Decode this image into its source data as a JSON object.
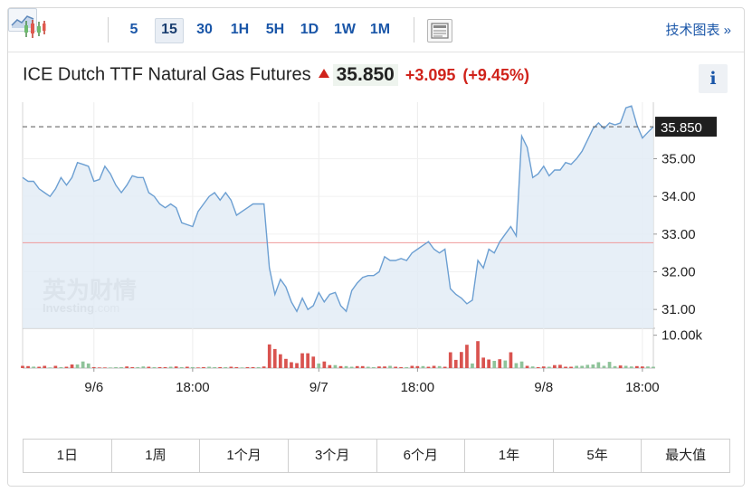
{
  "toolbar": {
    "timeframes": [
      "5",
      "15",
      "30",
      "1H",
      "5H",
      "1D",
      "1W",
      "1M"
    ],
    "active_timeframe": "15",
    "tech_chart_link": "技术图表 »"
  },
  "instrument": {
    "name": "ICE Dutch TTF Natural Gas Futures",
    "price": "35.850",
    "change": "+3.095",
    "change_pct": "(+9.45%)",
    "info_label": "i",
    "up_color": "#d0231b"
  },
  "watermark": {
    "brand_cn": "英为财情",
    "brand_en": "Investing",
    "brand_suffix": ".com"
  },
  "chart_data": {
    "type": "area",
    "x_ticks": [
      "9/6",
      "18:00",
      "9/7",
      "18:00",
      "9/8",
      "18:00"
    ],
    "x_tick_index": [
      13,
      31,
      54,
      72,
      95,
      113
    ],
    "ylim": [
      30.5,
      36.5
    ],
    "y_ticks": [
      "35.00",
      "34.00",
      "33.00",
      "32.00",
      "31.00"
    ],
    "y_tick_values": [
      35,
      34,
      33,
      32,
      31
    ],
    "last_price_label": "35.850",
    "last_price": 35.85,
    "reference_line": 32.77,
    "volume_axis_label": "10.00k",
    "volume_max": 11000,
    "line_color": "#6c9fd2",
    "fill_color": "#e3ecf6",
    "up_volume_color": "#d9534f",
    "down_volume_color": "#8fc39a",
    "prices": [
      34.5,
      34.4,
      34.4,
      34.2,
      34.1,
      34.0,
      34.2,
      34.5,
      34.3,
      34.5,
      34.9,
      34.85,
      34.8,
      34.4,
      34.45,
      34.8,
      34.6,
      34.3,
      34.1,
      34.3,
      34.55,
      34.5,
      34.5,
      34.1,
      34.0,
      33.8,
      33.7,
      33.8,
      33.7,
      33.3,
      33.25,
      33.2,
      33.6,
      33.8,
      34.0,
      34.1,
      33.9,
      34.1,
      33.9,
      33.5,
      33.6,
      33.7,
      33.8,
      33.8,
      33.8,
      32.1,
      31.4,
      31.8,
      31.6,
      31.2,
      30.95,
      31.3,
      31.0,
      31.1,
      31.45,
      31.2,
      31.4,
      31.45,
      31.1,
      30.95,
      31.5,
      31.7,
      31.85,
      31.9,
      31.9,
      32.0,
      32.4,
      32.3,
      32.3,
      32.35,
      32.3,
      32.5,
      32.6,
      32.7,
      32.8,
      32.6,
      32.5,
      32.6,
      31.55,
      31.4,
      31.3,
      31.15,
      31.25,
      32.3,
      32.1,
      32.6,
      32.5,
      32.8,
      33.0,
      33.2,
      32.95,
      35.6,
      35.3,
      34.5,
      34.6,
      34.8,
      34.55,
      34.7,
      34.7,
      34.9,
      34.85,
      35.0,
      35.2,
      35.5,
      35.8,
      35.95,
      35.8,
      35.95,
      35.9,
      35.95,
      36.35,
      36.4,
      35.9,
      35.55,
      35.7,
      35.85
    ],
    "volumes": [
      700,
      600,
      450,
      400,
      700,
      200,
      700,
      300,
      400,
      1100,
      1100,
      2000,
      1400,
      300,
      200,
      200,
      200,
      300,
      300,
      500,
      300,
      300,
      500,
      400,
      300,
      300,
      300,
      400,
      500,
      300,
      400,
      300,
      200,
      300,
      400,
      300,
      300,
      300,
      400,
      300,
      200,
      300,
      300,
      300,
      500,
      7200,
      5800,
      4200,
      2800,
      1800,
      1500,
      4500,
      4500,
      3500,
      1400,
      2000,
      900,
      900,
      600,
      600,
      400,
      600,
      600,
      400,
      300,
      500,
      500,
      700,
      400,
      300,
      300,
      700,
      600,
      600,
      400,
      700,
      600,
      400,
      4800,
      2500,
      4900,
      7100,
      1400,
      8200,
      3200,
      2600,
      2200,
      2700,
      2300,
      4800,
      1500,
      2000,
      700,
      500,
      300,
      500,
      400,
      900,
      1000,
      400,
      400,
      700,
      700,
      1000,
      1100,
      1800,
      700,
      1900,
      600,
      800,
      700,
      500,
      600,
      500,
      500,
      400
    ],
    "volume_up": [
      1,
      1,
      0,
      1,
      1,
      0,
      1,
      0,
      1,
      1,
      0,
      0,
      0,
      1,
      1,
      1,
      0,
      0,
      0,
      1,
      1,
      0,
      0,
      1,
      0,
      1,
      1,
      0,
      1,
      0,
      1,
      0,
      1,
      1,
      0,
      0,
      1,
      0,
      1,
      1,
      0,
      1,
      1,
      0,
      1,
      1,
      1,
      1,
      1,
      1,
      1,
      1,
      1,
      1,
      0,
      1,
      1,
      0,
      1,
      0,
      0,
      1,
      1,
      0,
      0,
      1,
      1,
      0,
      1,
      1,
      0,
      1,
      1,
      0,
      1,
      1,
      0,
      1,
      1,
      1,
      1,
      1,
      0,
      1,
      1,
      1,
      0,
      1,
      0,
      1,
      0,
      0,
      1,
      0,
      1,
      1,
      0,
      1,
      1,
      1,
      1,
      0,
      0,
      0,
      0,
      0,
      0,
      0,
      0,
      1,
      0,
      0,
      1,
      1,
      0,
      0
    ]
  },
  "ranges": [
    "1日",
    "1周",
    "1个月",
    "3个月",
    "6个月",
    "1年",
    "5年",
    "最大值"
  ]
}
